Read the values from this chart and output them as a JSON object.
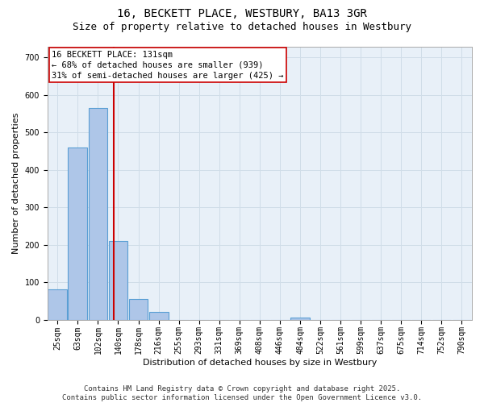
{
  "title_line1": "16, BECKETT PLACE, WESTBURY, BA13 3GR",
  "title_line2": "Size of property relative to detached houses in Westbury",
  "xlabel": "Distribution of detached houses by size in Westbury",
  "ylabel": "Number of detached properties",
  "categories": [
    "25sqm",
    "63sqm",
    "102sqm",
    "140sqm",
    "178sqm",
    "216sqm",
    "255sqm",
    "293sqm",
    "331sqm",
    "369sqm",
    "408sqm",
    "446sqm",
    "484sqm",
    "522sqm",
    "561sqm",
    "599sqm",
    "637sqm",
    "675sqm",
    "714sqm",
    "752sqm",
    "790sqm"
  ],
  "values": [
    80,
    460,
    565,
    210,
    55,
    20,
    0,
    0,
    0,
    0,
    0,
    0,
    5,
    0,
    0,
    0,
    0,
    0,
    0,
    0,
    0
  ],
  "bar_color": "#aec6e8",
  "bar_edgecolor": "#5a9fd4",
  "bar_linewidth": 0.8,
  "vline_color": "#cc0000",
  "ylim": [
    0,
    730
  ],
  "yticks": [
    0,
    100,
    200,
    300,
    400,
    500,
    600,
    700
  ],
  "annotation_text": "16 BECKETT PLACE: 131sqm\n← 68% of detached houses are smaller (939)\n31% of semi-detached houses are larger (425) →",
  "annotation_box_color": "#cc0000",
  "grid_color": "#d0dde8",
  "bg_color": "#e8f0f8",
  "footer_text": "Contains HM Land Registry data © Crown copyright and database right 2025.\nContains public sector information licensed under the Open Government Licence v3.0.",
  "title_fontsize": 10,
  "subtitle_fontsize": 9,
  "axis_label_fontsize": 8,
  "tick_fontsize": 7,
  "annotation_fontsize": 7.5,
  "footer_fontsize": 6.5
}
